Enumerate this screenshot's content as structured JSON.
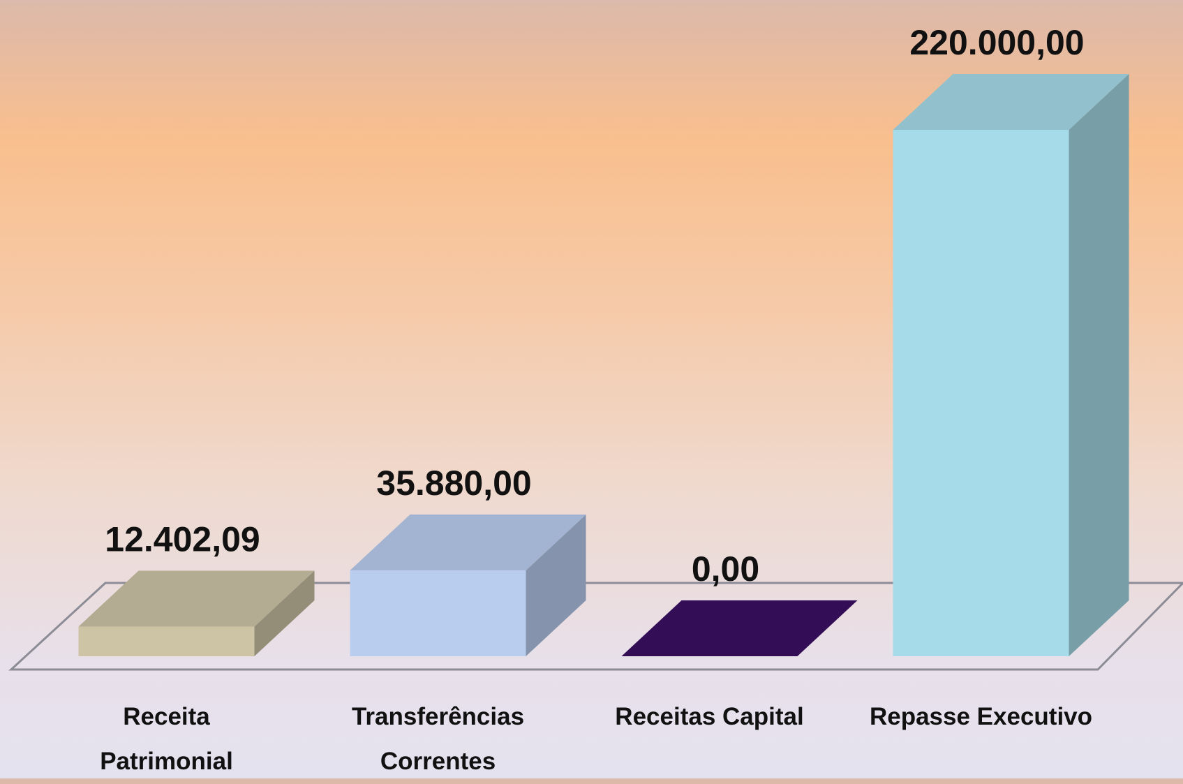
{
  "chart_data": {
    "type": "bar3d",
    "categories": [
      "Receita\nPatrimonial",
      "Transferências\nCorrentes",
      "Receitas Capital",
      "Repasse Executivo"
    ],
    "values": [
      12402.09,
      35880,
      0,
      220000
    ],
    "value_labels": [
      "12.402,09",
      "35.880,00",
      "0,00",
      "220.000,00"
    ],
    "colors": [
      "#cdc4a6",
      "#b9cdef",
      "#3b0f63",
      "#a6dbe9"
    ]
  }
}
